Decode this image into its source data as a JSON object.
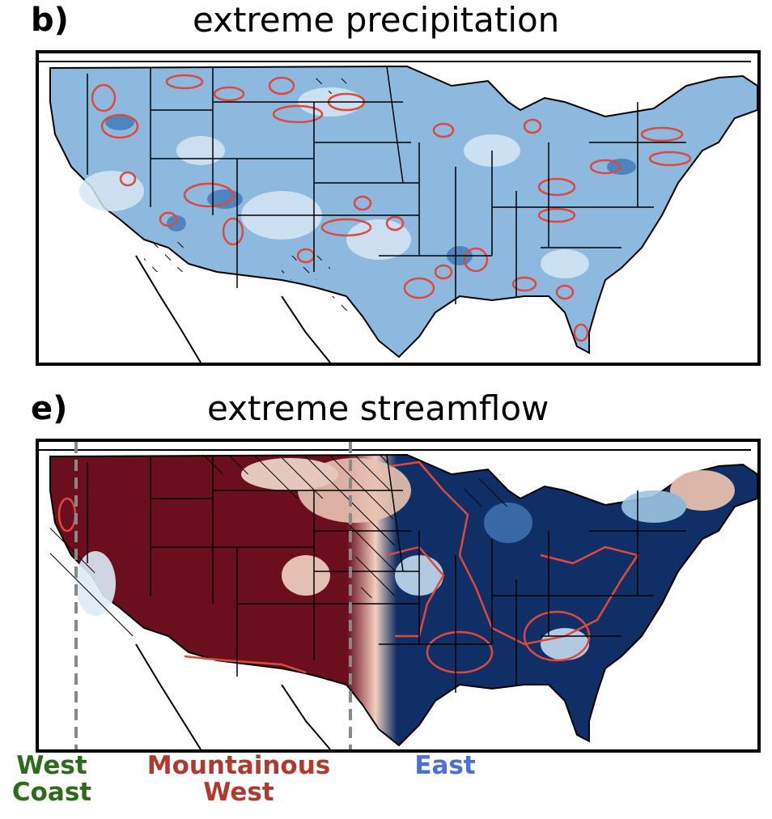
{
  "panels": [
    {
      "letter": "b)",
      "title": "extreme precipitation"
    },
    {
      "letter": "e)",
      "title": "extreme streamflow"
    }
  ],
  "region_labels": [
    {
      "line1": "West",
      "line2": "Coast",
      "color": "#2e6b1e"
    },
    {
      "line1": "Mountainous",
      "line2": "West",
      "color": "#b03a2e"
    },
    {
      "line1": "East",
      "line2": "",
      "color": "#4a6fd8"
    }
  ],
  "colors": {
    "blue_light": "#d9e8f5",
    "blue_mid": "#7fb0d9",
    "blue_dark": "#0f2f66",
    "red_dark": "#6b0e1e",
    "red_mid": "#c05a4a",
    "contour": "#e0483c",
    "divider": "#888888"
  }
}
